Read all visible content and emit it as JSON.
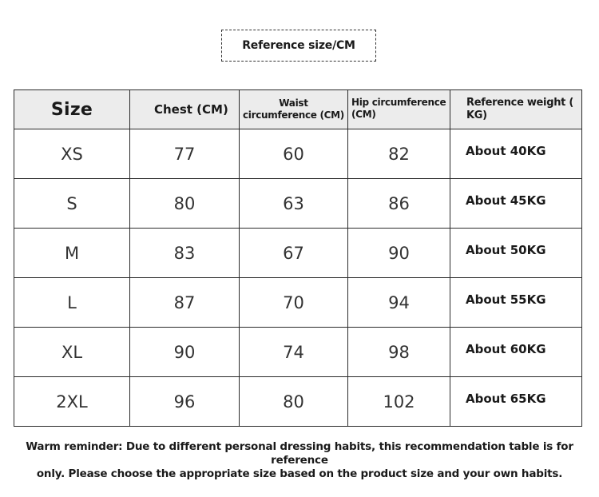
{
  "title": "Reference size/CM",
  "table": {
    "headers": {
      "size": "Size",
      "chest": "Chest (CM)",
      "waist": "Waist\ncircumference (CM)",
      "hip": "Hip circumference\n(CM)",
      "weight": "Reference weight (\nKG)"
    },
    "rows": [
      {
        "size": "XS",
        "chest": "77",
        "waist": "60",
        "hip": "82",
        "weight": "About 40KG"
      },
      {
        "size": "S",
        "chest": "80",
        "waist": "63",
        "hip": "86",
        "weight": "About 45KG"
      },
      {
        "size": "M",
        "chest": "83",
        "waist": "67",
        "hip": "90",
        "weight": "About 50KG"
      },
      {
        "size": "L",
        "chest": "87",
        "waist": "70",
        "hip": "94",
        "weight": "About 55KG"
      },
      {
        "size": "XL",
        "chest": "90",
        "waist": "74",
        "hip": "98",
        "weight": "About 60KG"
      },
      {
        "size": "2XL",
        "chest": "96",
        "waist": "80",
        "hip": "102",
        "weight": "About 65KG"
      }
    ]
  },
  "reminder": {
    "line1": "Warm reminder: Due to different personal dressing habits, this recommendation table is for reference",
    "line2": "only. Please choose the appropriate size based on the product size and your own habits."
  }
}
